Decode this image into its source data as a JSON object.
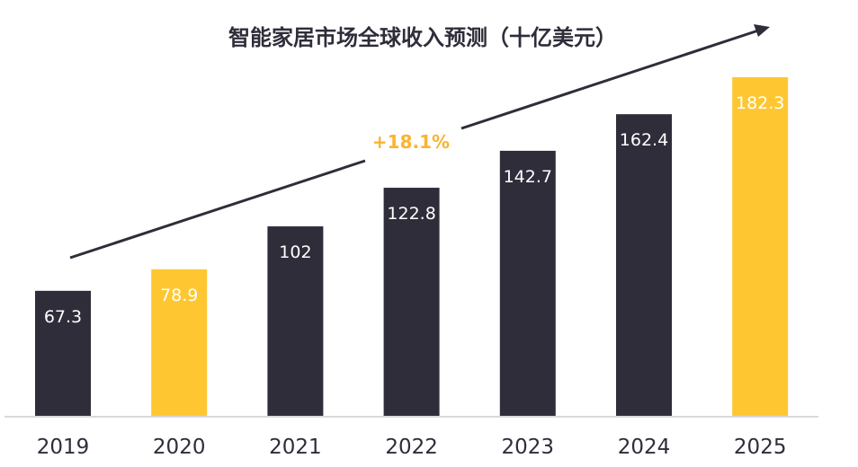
{
  "chart_data": {
    "type": "bar",
    "title": "智能家居市场全球收入预测（十亿美元）",
    "categories": [
      "2019",
      "2020",
      "2021",
      "2022",
      "2023",
      "2024",
      "2025"
    ],
    "values": [
      67.3,
      78.9,
      102,
      122.8,
      142.7,
      162.4,
      182.3
    ],
    "value_labels": [
      "67.3",
      "78.9",
      "102",
      "122.8",
      "142.7",
      "162.4",
      "182.3"
    ],
    "highlighted": [
      "2020",
      "2025"
    ],
    "colors": {
      "default": "#302d3a",
      "highlight": "#fec732",
      "growth_label": "#fbb330",
      "axis": "#d9d9d9"
    },
    "annotation": "+18.1%",
    "trend_arrow": true,
    "ylim": [
      0,
      182.3
    ],
    "grid": false,
    "xlabel": "",
    "ylabel": ""
  }
}
